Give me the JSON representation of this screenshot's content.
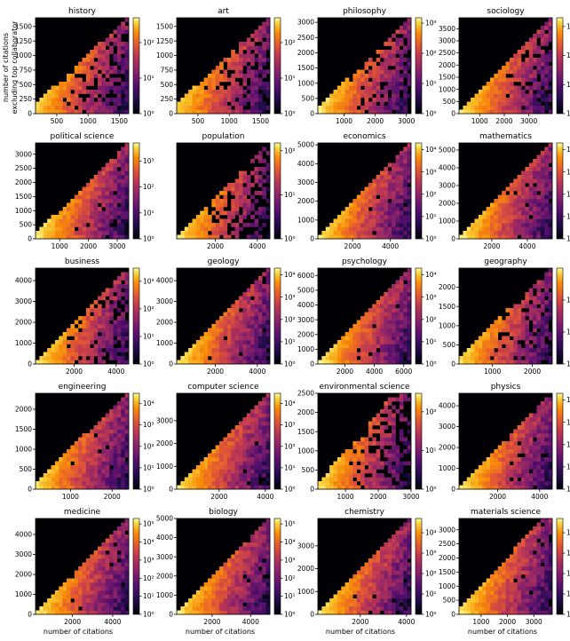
{
  "figure": {
    "shared_ylabel_line1": "number of citations",
    "shared_ylabel_line2": "excluding top collaborator",
    "shared_xlabel": "number of citations"
  },
  "chart_data": [
    {
      "type": "heatmap",
      "title": "history",
      "xlim": [
        160,
        1650
      ],
      "ylim": [
        0,
        1650
      ],
      "xticks": [
        500,
        1000,
        1500
      ],
      "yticks": [
        0,
        250,
        500,
        750,
        1000,
        1250,
        1500
      ],
      "colorbar": {
        "scale": "log",
        "min": 1,
        "max": 500,
        "ticks": [
          1,
          10,
          100
        ],
        "tick_labels": [
          "10⁰",
          "10¹",
          "10²"
        ]
      }
    },
    {
      "type": "heatmap",
      "title": "art",
      "xlim": [
        160,
        1650
      ],
      "ylim": [
        0,
        1650
      ],
      "xticks": [
        500,
        1000,
        1500
      ],
      "yticks": [
        0,
        250,
        500,
        750,
        1000,
        1250,
        1500
      ],
      "colorbar": {
        "scale": "log",
        "min": 1,
        "max": 500,
        "ticks": [
          1,
          10,
          100
        ],
        "tick_labels": [
          "10⁰",
          "10¹",
          "10²"
        ]
      }
    },
    {
      "type": "heatmap",
      "title": "philosophy",
      "xlim": [
        160,
        3150
      ],
      "ylim": [
        0,
        3150
      ],
      "xticks": [
        1000,
        2000,
        3000
      ],
      "yticks": [
        0,
        500,
        1000,
        1500,
        2000,
        2500,
        3000
      ],
      "colorbar": {
        "scale": "log",
        "min": 1,
        "max": 1500,
        "ticks": [
          1,
          10,
          100,
          1000
        ],
        "tick_labels": [
          "10⁰",
          "10¹",
          "10²",
          "10³"
        ]
      }
    },
    {
      "type": "heatmap",
      "title": "sociology",
      "xlim": [
        160,
        3950
      ],
      "ylim": [
        0,
        3950
      ],
      "xticks": [
        1000,
        2000,
        3000
      ],
      "yticks": [
        0,
        500,
        1000,
        1500,
        2000,
        2500,
        3000,
        3500
      ],
      "colorbar": {
        "scale": "log",
        "min": 1,
        "max": 2000,
        "ticks": [
          1,
          10,
          100,
          1000
        ],
        "tick_labels": [
          "10⁰",
          "10¹",
          "10²",
          "10³"
        ]
      }
    },
    {
      "type": "heatmap",
      "title": "political science",
      "xlim": [
        160,
        3400
      ],
      "ylim": [
        0,
        3400
      ],
      "xticks": [
        1000,
        2000,
        3000
      ],
      "yticks": [
        0,
        500,
        1000,
        1500,
        2000,
        2500,
        3000
      ],
      "colorbar": {
        "scale": "log",
        "min": 1,
        "max": 5000,
        "ticks": [
          1,
          10,
          100,
          1000
        ],
        "tick_labels": [
          "10⁰",
          "10¹",
          "10²",
          "10³"
        ]
      }
    },
    {
      "type": "heatmap",
      "title": "population",
      "xlim": [
        160,
        4600
      ],
      "ylim": [
        0,
        4600
      ],
      "xticks": [
        2000,
        4000
      ],
      "yticks": [],
      "colorbar": {
        "scale": "log",
        "min": 1,
        "max": 150,
        "ticks": [
          1,
          10,
          100
        ],
        "tick_labels": [
          "10⁰",
          "10¹",
          "10²"
        ]
      }
    },
    {
      "type": "heatmap",
      "title": "economics",
      "xlim": [
        160,
        5100
      ],
      "ylim": [
        0,
        5100
      ],
      "xticks": [
        2000,
        4000
      ],
      "yticks": [
        0,
        1000,
        2000,
        3000,
        4000,
        5000
      ],
      "colorbar": {
        "scale": "log",
        "min": 1,
        "max": 20000,
        "ticks": [
          1,
          10,
          100,
          1000,
          10000
        ],
        "tick_labels": [
          "10⁰",
          "10¹",
          "10²",
          "10³",
          "10⁴"
        ]
      }
    },
    {
      "type": "heatmap",
      "title": "mathematics",
      "xlim": [
        160,
        5400
      ],
      "ylim": [
        0,
        5400
      ],
      "xticks": [
        2000,
        4000
      ],
      "yticks": [
        0,
        1000,
        2000,
        3000,
        4000,
        5000
      ],
      "colorbar": {
        "scale": "log",
        "min": 1,
        "max": 20000,
        "ticks": [
          1,
          10,
          100,
          1000,
          10000
        ],
        "tick_labels": [
          "10⁰",
          "10¹",
          "10²",
          "10³",
          "10⁴"
        ]
      }
    },
    {
      "type": "heatmap",
      "title": "business",
      "xlim": [
        160,
        4600
      ],
      "ylim": [
        0,
        4600
      ],
      "xticks": [
        2000,
        4000
      ],
      "yticks": [
        0,
        1000,
        2000,
        3000,
        4000
      ],
      "colorbar": {
        "scale": "log",
        "min": 1,
        "max": 3000,
        "ticks": [
          1,
          10,
          100,
          1000
        ],
        "tick_labels": [
          "10⁰",
          "10¹",
          "10²",
          "10³"
        ]
      }
    },
    {
      "type": "heatmap",
      "title": "geology",
      "xlim": [
        160,
        4600
      ],
      "ylim": [
        0,
        4600
      ],
      "xticks": [
        2000,
        4000
      ],
      "yticks": [
        0,
        1000,
        2000,
        3000,
        4000
      ],
      "colorbar": {
        "scale": "log",
        "min": 1,
        "max": 20000,
        "ticks": [
          1,
          10,
          100,
          1000,
          10000
        ],
        "tick_labels": [
          "10⁰",
          "10¹",
          "10²",
          "10³",
          "10⁴"
        ]
      }
    },
    {
      "type": "heatmap",
      "title": "psychology",
      "xlim": [
        160,
        6500
      ],
      "ylim": [
        0,
        6500
      ],
      "xticks": [
        2000,
        4000,
        6000
      ],
      "yticks": [
        0,
        1000,
        2000,
        3000,
        4000,
        5000,
        6000
      ],
      "colorbar": {
        "scale": "log",
        "min": 1,
        "max": 20000,
        "ticks": [
          1,
          10,
          100,
          1000,
          10000
        ],
        "tick_labels": [
          "10⁰",
          "10¹",
          "10²",
          "10³",
          "10⁴"
        ]
      }
    },
    {
      "type": "heatmap",
      "title": "geography",
      "xlim": [
        160,
        2500
      ],
      "ylim": [
        0,
        2500
      ],
      "xticks": [
        1000,
        2000
      ],
      "yticks": [
        0,
        500,
        1000,
        1500,
        2000
      ],
      "colorbar": {
        "scale": "log",
        "min": 1,
        "max": 1000,
        "ticks": [
          1,
          10,
          100
        ],
        "tick_labels": [
          "10⁰",
          "10¹",
          "10²"
        ]
      }
    },
    {
      "type": "heatmap",
      "title": "engineering",
      "xlim": [
        160,
        2400
      ],
      "ylim": [
        0,
        2400
      ],
      "xticks": [
        1000,
        2000
      ],
      "yticks": [
        0,
        500,
        1000,
        1500,
        2000
      ],
      "colorbar": {
        "scale": "log",
        "min": 1,
        "max": 30000,
        "ticks": [
          1,
          10,
          100,
          1000,
          10000
        ],
        "tick_labels": [
          "10⁰",
          "10¹",
          "10²",
          "10³",
          "10⁴"
        ]
      }
    },
    {
      "type": "heatmap",
      "title": "computer science",
      "xlim": [
        160,
        4200
      ],
      "ylim": [
        0,
        4200
      ],
      "xticks": [
        2000,
        4000
      ],
      "yticks": [
        0,
        1000,
        2000,
        3000
      ],
      "colorbar": {
        "scale": "log",
        "min": 1,
        "max": 30000,
        "ticks": [
          1,
          10,
          100,
          1000,
          10000
        ],
        "tick_labels": [
          "10⁰",
          "10¹",
          "10²",
          "10³",
          "10⁴"
        ]
      }
    },
    {
      "type": "heatmap",
      "title": "environmental science",
      "xlim": [
        160,
        3000
      ],
      "ylim": [
        0,
        2500
      ],
      "xticks": [
        1000,
        2000,
        3000
      ],
      "yticks": [
        0,
        500,
        1000,
        1500,
        2000,
        2500
      ],
      "colorbar": {
        "scale": "log",
        "min": 1,
        "max": 300,
        "ticks": [
          1,
          10,
          100
        ],
        "tick_labels": [
          "10⁰",
          "10¹",
          "10²"
        ]
      }
    },
    {
      "type": "heatmap",
      "title": "physics",
      "xlim": [
        160,
        4600
      ],
      "ylim": [
        0,
        4600
      ],
      "xticks": [
        2000,
        4000
      ],
      "yticks": [
        0,
        1000,
        2000,
        3000,
        4000
      ],
      "colorbar": {
        "scale": "log",
        "min": 1,
        "max": 20000,
        "ticks": [
          1,
          10,
          100,
          1000,
          10000
        ],
        "tick_labels": [
          "10⁰",
          "10¹",
          "10²",
          "10³",
          "10⁴"
        ]
      }
    },
    {
      "type": "heatmap",
      "title": "medicine",
      "xlim": [
        160,
        4800
      ],
      "ylim": [
        0,
        4800
      ],
      "xticks": [
        2000,
        4000
      ],
      "yticks": [
        0,
        1000,
        2000,
        3000,
        4000
      ],
      "colorbar": {
        "scale": "log",
        "min": 1,
        "max": 200000,
        "ticks": [
          1,
          10,
          100,
          1000,
          10000,
          100000
        ],
        "tick_labels": [
          "10⁰",
          "10¹",
          "10²",
          "10³",
          "10⁴",
          "10⁵"
        ]
      }
    },
    {
      "type": "heatmap",
      "title": "biology",
      "xlim": [
        160,
        5000
      ],
      "ylim": [
        0,
        5000
      ],
      "xticks": [
        2000,
        4000
      ],
      "yticks": [
        0,
        1000,
        2000,
        3000,
        4000,
        5000
      ],
      "colorbar": {
        "scale": "log",
        "min": 1,
        "max": 200000,
        "ticks": [
          1,
          10,
          100,
          1000,
          10000,
          100000
        ],
        "tick_labels": [
          "10⁰",
          "10¹",
          "10²",
          "10³",
          "10⁴",
          "10⁵"
        ]
      }
    },
    {
      "type": "heatmap",
      "title": "chemistry",
      "xlim": [
        160,
        4200
      ],
      "ylim": [
        0,
        4200
      ],
      "xticks": [
        2000,
        4000
      ],
      "yticks": [
        0,
        1000,
        2000,
        3000
      ],
      "colorbar": {
        "scale": "log",
        "min": 1,
        "max": 50000,
        "ticks": [
          1,
          10,
          100,
          1000,
          10000
        ],
        "tick_labels": [
          "10⁰",
          "10¹",
          "10²",
          "10³",
          "10⁴"
        ]
      }
    },
    {
      "type": "heatmap",
      "title": "materials science",
      "xlim": [
        160,
        3700
      ],
      "ylim": [
        0,
        3400
      ],
      "xticks": [
        1000,
        2000,
        3000
      ],
      "yticks": [
        0,
        500,
        1000,
        1500,
        2000,
        2500,
        3000
      ],
      "colorbar": {
        "scale": "log",
        "min": 1,
        "max": 50000,
        "ticks": [
          1,
          10,
          100,
          1000,
          10000
        ],
        "tick_labels": [
          "10⁰",
          "10¹",
          "10²",
          "10³",
          "10⁴"
        ]
      }
    }
  ]
}
